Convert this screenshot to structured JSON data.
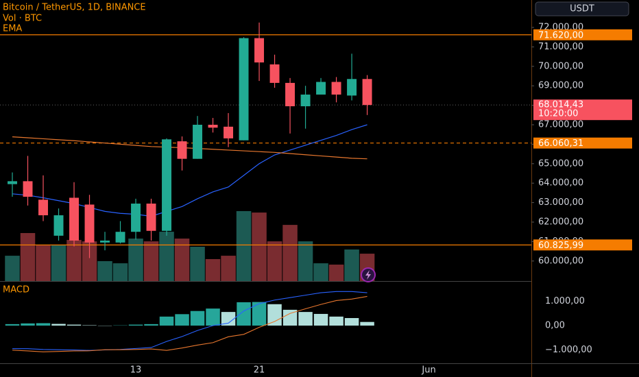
{
  "chart_data": {
    "type": "candlestick",
    "title": "Bitcoin / TetherUS, 1D, BINANCE",
    "volume_label": "Vol · BTC",
    "ema_label": "EMA",
    "currency": "USDT",
    "up_color": "#22ab94",
    "down_color": "#f7525f",
    "x": [
      0,
      1,
      2,
      3,
      4,
      5,
      6,
      7,
      8,
      9,
      10,
      11,
      12,
      13,
      14,
      15,
      16,
      17,
      18,
      19,
      20,
      21,
      22,
      23
    ],
    "xlim": [
      -0.8,
      33.64
    ],
    "xticks": [
      {
        "value": 8,
        "label": "13"
      },
      {
        "value": 16,
        "label": "21"
      },
      {
        "value": 27,
        "label": "Jun"
      }
    ],
    "open": [
      63950,
      64100,
      63150,
      61300,
      63250,
      62900,
      60950,
      60950,
      61500,
      62950,
      61550,
      66150,
      65250,
      67000,
      66900,
      66200,
      71450,
      70100,
      69150,
      67950,
      68550,
      69200,
      68500,
      69350
    ],
    "high": [
      64550,
      65400,
      64400,
      62700,
      64050,
      63400,
      61500,
      62050,
      63200,
      63200,
      66300,
      66400,
      67450,
      67350,
      67600,
      71500,
      72250,
      70600,
      69400,
      69000,
      69400,
      69450,
      70650,
      69550
    ],
    "low": [
      63300,
      62850,
      62050,
      61050,
      60750,
      60150,
      60550,
      60900,
      61100,
      61050,
      61300,
      64650,
      65250,
      66600,
      65850,
      66200,
      69250,
      68900,
      66550,
      66800,
      68650,
      68150,
      68250,
      67500
    ],
    "close": [
      64100,
      63300,
      62350,
      62350,
      61050,
      60950,
      61050,
      61500,
      62950,
      61550,
      66250,
      65250,
      67000,
      66850,
      66300,
      71450,
      70200,
      69150,
      67950,
      68550,
      69200,
      68550,
      69350,
      68014.43
    ],
    "ylim": [
      58972,
      73408
    ],
    "yticks": [
      {
        "value": 60000,
        "label": "60.000,00"
      },
      {
        "value": 61000,
        "label": "61.000,00"
      },
      {
        "value": 62000,
        "label": "62.000,00"
      },
      {
        "value": 63000,
        "label": "63.000,00"
      },
      {
        "value": 64000,
        "label": "64.000,00"
      },
      {
        "value": 65000,
        "label": "65.000,00"
      },
      {
        "value": 66000,
        "label": "66.000,00"
      },
      {
        "value": 67000,
        "label": "67.000,00"
      },
      {
        "value": 68000,
        "label": "68.000,00"
      },
      {
        "value": 69000,
        "label": "69.000,00"
      },
      {
        "value": 70000,
        "label": "70.000,00"
      },
      {
        "value": 71000,
        "label": "71.000,00"
      },
      {
        "value": 72000,
        "label": "72.000,00"
      }
    ],
    "volume": [
      21100,
      40000,
      29700,
      29700,
      34300,
      33100,
      16600,
      14800,
      35400,
      33100,
      41100,
      35400,
      28600,
      18300,
      21100,
      58300,
      57100,
      33100,
      46800,
      33100,
      14800,
      13700,
      26300,
      22800
    ],
    "volume_ylim": [
      0,
      80000
    ],
    "volume_colors": {
      "up": "#1c5a53",
      "down": "#7a2c30"
    },
    "series": [
      {
        "name": "EMA fast",
        "color": "#2962ff",
        "values": [
          63450,
          63380,
          63250,
          63100,
          62950,
          62750,
          62550,
          62450,
          62400,
          62300,
          62550,
          62800,
          63200,
          63550,
          63800,
          64400,
          65000,
          65450,
          65700,
          65950,
          66200,
          66450,
          66750,
          67000
        ]
      },
      {
        "name": "EMA slow",
        "color": "#e8772e",
        "values": [
          66380,
          66330,
          66280,
          66230,
          66180,
          66120,
          66060,
          66000,
          65940,
          65880,
          65850,
          65820,
          65780,
          65740,
          65700,
          65660,
          65620,
          65580,
          65520,
          65460,
          65400,
          65340,
          65280,
          65250
        ]
      }
    ],
    "price_lines": [
      {
        "value": 71620,
        "label": "71.620,00",
        "color": "#f57c00",
        "style": "solid"
      },
      {
        "value": 66060.31,
        "label": "66.060,31",
        "color": "#f57c00",
        "style": "dashed"
      },
      {
        "value": 60825.99,
        "label": "60.825,99",
        "color": "#f57c00",
        "style": "solid"
      }
    ],
    "last_price": {
      "value": 68014.43,
      "label": "68.014,43",
      "countdown": "10:20:00",
      "color": "#f7525f"
    },
    "macd": {
      "label": "MACD",
      "ylim": [
        -1549,
        1831
      ],
      "yticks": [
        {
          "value": -1000,
          "label": "−1.000,00"
        },
        {
          "value": 0,
          "label": "0,00"
        },
        {
          "value": 1000,
          "label": "1.000,00"
        }
      ],
      "histogram": [
        60,
        90,
        100,
        70,
        40,
        15,
        -10,
        10,
        40,
        60,
        370,
        470,
        600,
        700,
        560,
        960,
        970,
        880,
        650,
        560,
        480,
        370,
        310,
        150
      ],
      "histogram_colors": {
        "rising": "#26a69a",
        "falling": "#b2dfdb"
      },
      "macd": {
        "color": "#2962ff",
        "values": [
          -950,
          -950,
          -980,
          -990,
          -1000,
          -1020,
          -1000,
          -980,
          -940,
          -900,
          -650,
          -450,
          -200,
          0,
          100,
          600,
          900,
          1050,
          1150,
          1250,
          1350,
          1400,
          1400,
          1350
        ]
      },
      "signal": {
        "color": "#e8772e",
        "values": [
          -1010,
          -1040,
          -1080,
          -1060,
          -1040,
          -1035,
          -990,
          -990,
          -980,
          -960,
          -1020,
          -920,
          -800,
          -700,
          -460,
          -360,
          -70,
          170,
          500,
          690,
          870,
          1030,
          1090,
          1200
        ]
      }
    }
  }
}
